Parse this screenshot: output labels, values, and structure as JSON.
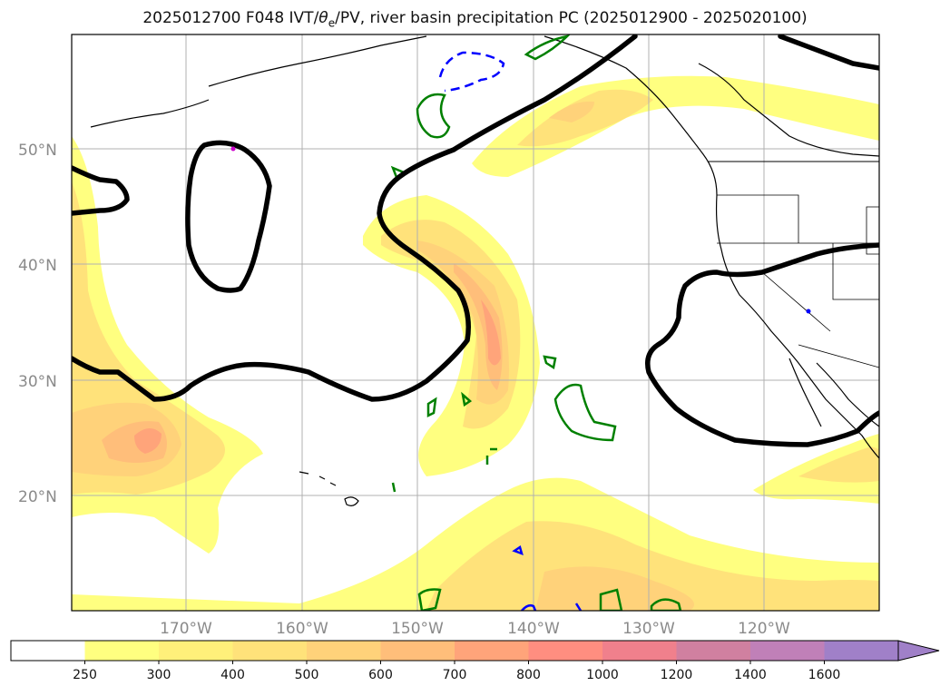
{
  "title": "2025012700 F048 IVT/θe/PV, river basin precipitation PC (2025012900 - 2025020100)",
  "title_parts": {
    "prefix": "2025012700 F048 IVT/",
    "theta": "θ",
    "sub": "e",
    "suffix": "/PV, river basin precipitation PC (2025012900 - 2025020100)"
  },
  "lat_labels": [
    "50°N",
    "40°N",
    "30°N",
    "20°N"
  ],
  "lon_labels": [
    "170°W",
    "160°W",
    "150°W",
    "140°W",
    "130°W",
    "120°W"
  ],
  "colorbar": {
    "ticks": [
      "250",
      "300",
      "400",
      "500",
      "600",
      "700",
      "800",
      "1000",
      "1200",
      "1400",
      "1600"
    ],
    "colors": [
      "#ffffff",
      "#ffff80",
      "#fff07a",
      "#ffe27a",
      "#ffd27a",
      "#ffbe7a",
      "#ffa47a",
      "#ff8e80",
      "#f0808c",
      "#d080a0",
      "#c080b8",
      "#a080c8"
    ]
  },
  "colors": {
    "ivt_light": "#ffff80",
    "ivt_mid": "#ffd27a",
    "ivt_high": "#ffa47a",
    "ivt_max": "#f88a7e",
    "pv_contour": "#000000",
    "theta_e_green": "#008000",
    "precip_blue": "#0000ff"
  }
}
